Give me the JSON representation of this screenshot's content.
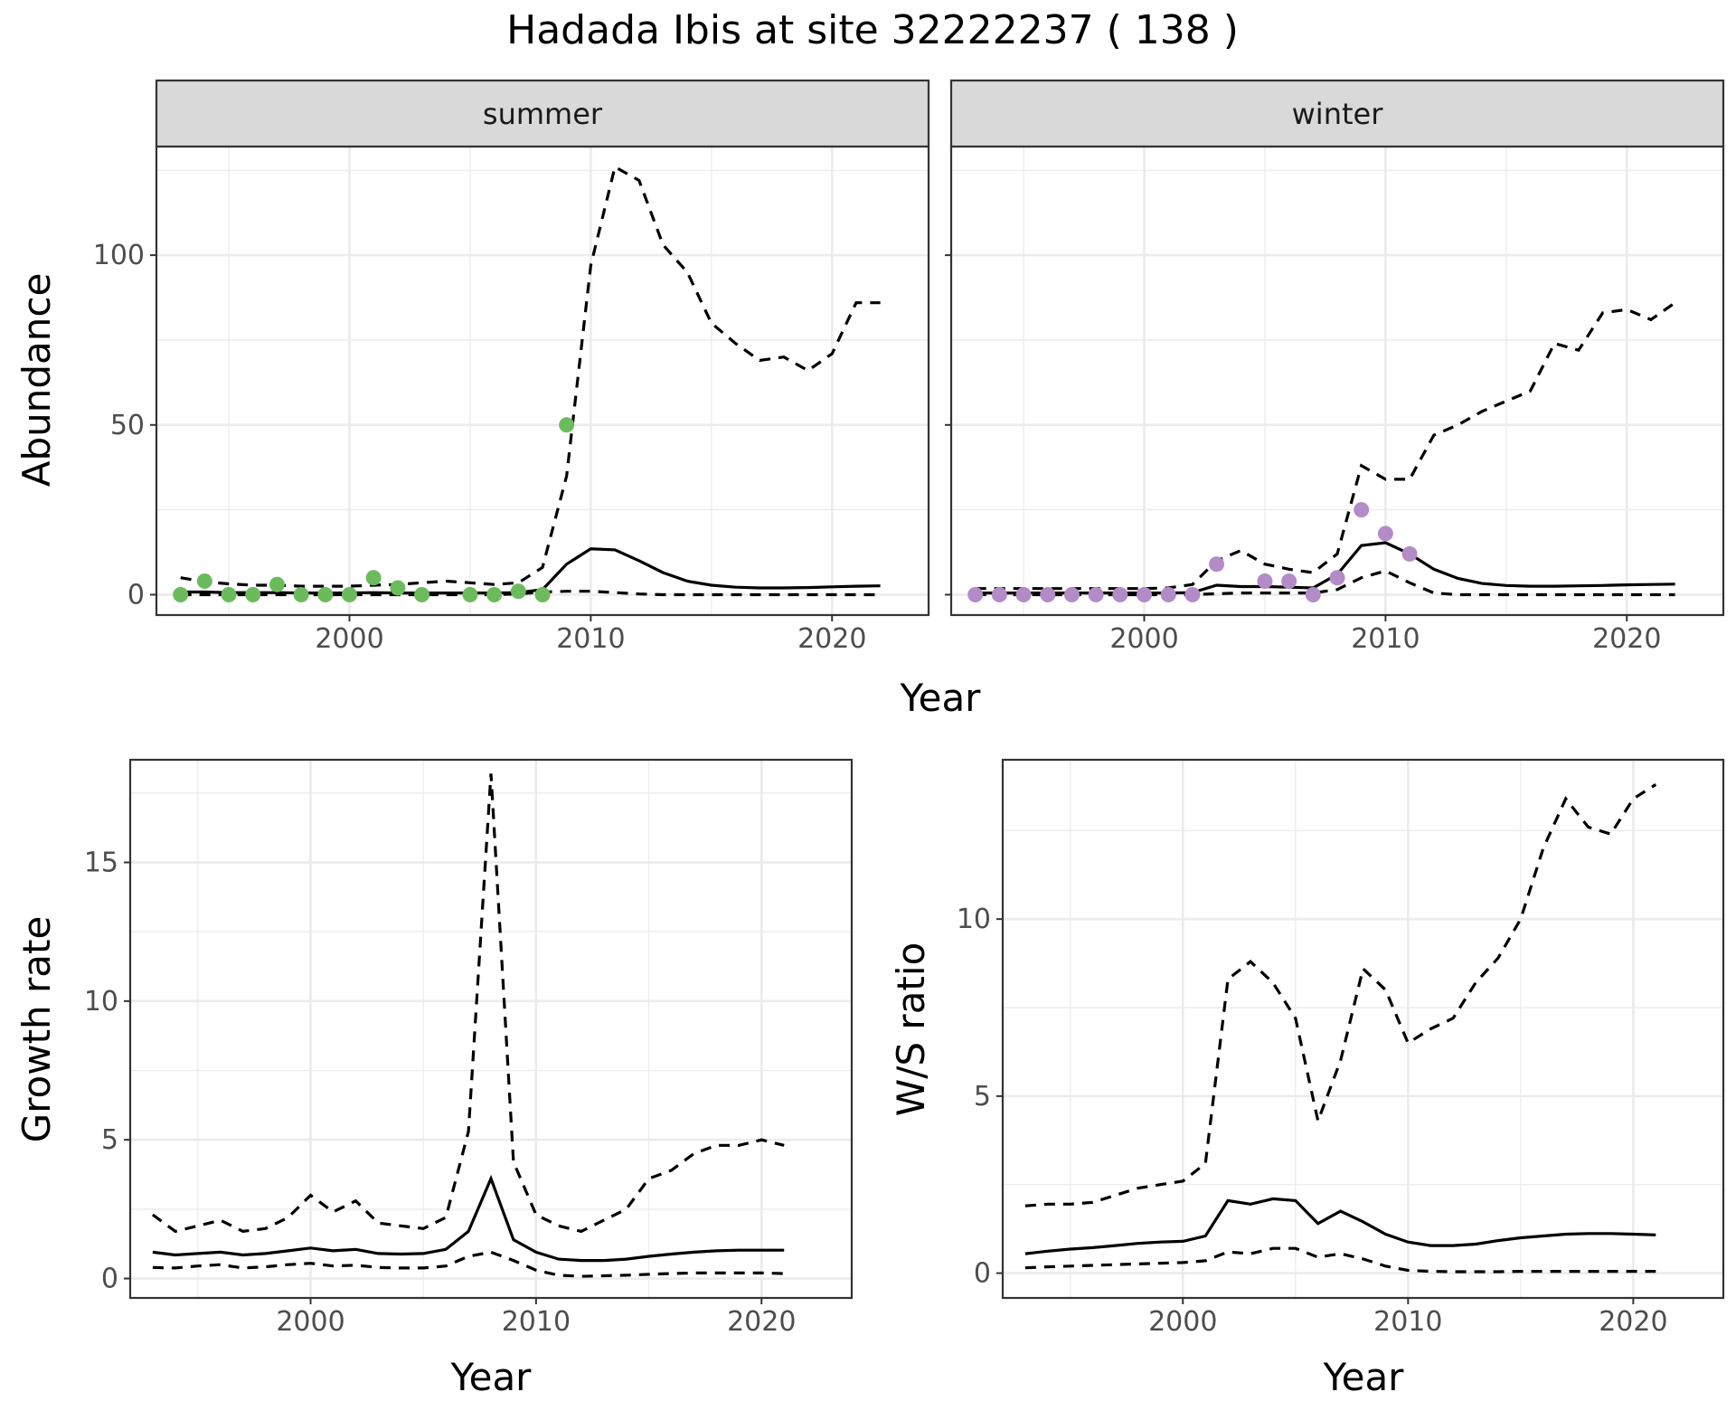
{
  "title": "Hadada Ibis at site 32222237 ( 138 )",
  "colors": {
    "summer_points": "#6bbb5d",
    "winter_points": "#b38bc7",
    "lines": "#000000"
  },
  "chart_data": [
    {
      "type": "line",
      "id": "abundance_summer",
      "strip": "summer",
      "xlabel": "Year",
      "ylabel": "Abundance",
      "xlim": [
        1992,
        2024
      ],
      "ylim": [
        -6,
        132
      ],
      "xticks": [
        2000,
        2010,
        2020
      ],
      "yticks": [
        0,
        50,
        100
      ],
      "series": [
        {
          "role": "mean",
          "style": "solid",
          "x": [
            1993,
            1994,
            1995,
            1996,
            1997,
            1998,
            1999,
            2000,
            2001,
            2002,
            2003,
            2004,
            2005,
            2006,
            2007,
            2008,
            2009,
            2010,
            2011,
            2012,
            2013,
            2014,
            2015,
            2016,
            2017,
            2018,
            2019,
            2020,
            2021,
            2022
          ],
          "y": [
            0.8,
            0.8,
            0.6,
            0.6,
            0.6,
            0.5,
            0.5,
            0.5,
            0.6,
            0.5,
            0.5,
            0.5,
            0.5,
            0.5,
            0.6,
            1.5,
            9,
            13.5,
            13.2,
            10,
            6.5,
            4,
            2.8,
            2.2,
            2,
            2,
            2.1,
            2.3,
            2.5,
            2.6
          ]
        },
        {
          "role": "upper",
          "style": "dashed",
          "x": [
            1993,
            1994,
            1995,
            1996,
            1997,
            1998,
            1999,
            2000,
            2001,
            2002,
            2003,
            2004,
            2005,
            2006,
            2007,
            2008,
            2009,
            2010,
            2011,
            2012,
            2013,
            2014,
            2015,
            2016,
            2017,
            2018,
            2019,
            2020,
            2021,
            2022
          ],
          "y": [
            5,
            3.8,
            3.2,
            2.8,
            2.8,
            2.5,
            2.5,
            2.5,
            2.8,
            3,
            3.5,
            4,
            3.5,
            3,
            3.5,
            8,
            35,
            97,
            126,
            122,
            103,
            95,
            80,
            74,
            69,
            70,
            66,
            71,
            86,
            86
          ]
        },
        {
          "role": "lower",
          "style": "dashed",
          "x": [
            1993,
            1994,
            1995,
            1996,
            1997,
            1998,
            1999,
            2000,
            2001,
            2002,
            2003,
            2004,
            2005,
            2006,
            2007,
            2008,
            2009,
            2010,
            2011,
            2012,
            2013,
            2014,
            2015,
            2016,
            2017,
            2018,
            2019,
            2020,
            2021,
            2022
          ],
          "y": [
            0,
            0,
            0,
            0,
            0,
            0,
            0,
            0,
            0,
            0,
            0,
            0,
            0,
            0,
            0.2,
            0.8,
            1,
            1,
            0.6,
            0.2,
            0,
            0,
            0,
            0,
            0,
            0,
            0,
            0,
            0,
            0
          ]
        }
      ],
      "points": {
        "x": [
          1993,
          1994,
          1995,
          1996,
          1997,
          1998,
          1999,
          2000,
          2001,
          2002,
          2003,
          2005,
          2006,
          2007,
          2008,
          2009
        ],
        "y": [
          0,
          4,
          0,
          0,
          3,
          0,
          0,
          0,
          5,
          2,
          0,
          0,
          0,
          1,
          0,
          50
        ]
      }
    },
    {
      "type": "line",
      "id": "abundance_winter",
      "strip": "winter",
      "xlabel": "Year",
      "ylabel": "Abundance",
      "xlim": [
        1992,
        2024
      ],
      "ylim": [
        -6,
        132
      ],
      "xticks": [
        2000,
        2010,
        2020
      ],
      "yticks": [
        0,
        50,
        100
      ],
      "series": [
        {
          "role": "mean",
          "style": "solid",
          "x": [
            1993,
            1994,
            1995,
            1996,
            1997,
            1998,
            1999,
            2000,
            2001,
            2002,
            2003,
            2004,
            2005,
            2006,
            2007,
            2008,
            2009,
            2010,
            2011,
            2012,
            2013,
            2014,
            2015,
            2016,
            2017,
            2018,
            2019,
            2020,
            2021,
            2022
          ],
          "y": [
            0.5,
            0.5,
            0.5,
            0.5,
            0.5,
            0.5,
            0.5,
            0.5,
            0.5,
            0.6,
            2.8,
            2.4,
            2.4,
            2.2,
            2,
            6,
            14.5,
            15.3,
            12,
            7.5,
            4.8,
            3.3,
            2.7,
            2.5,
            2.5,
            2.6,
            2.7,
            2.9,
            3,
            3.1
          ]
        },
        {
          "role": "upper",
          "style": "dashed",
          "x": [
            1993,
            1994,
            1995,
            1996,
            1997,
            1998,
            1999,
            2000,
            2001,
            2002,
            2003,
            2004,
            2005,
            2006,
            2007,
            2008,
            2009,
            2010,
            2011,
            2012,
            2013,
            2014,
            2015,
            2016,
            2017,
            2018,
            2019,
            2020,
            2021,
            2022
          ],
          "y": [
            1.8,
            1.8,
            1.8,
            1.8,
            1.8,
            1.8,
            1.8,
            1.8,
            2,
            3,
            10,
            13,
            9,
            7.5,
            6.5,
            12,
            38,
            34,
            34,
            47,
            50,
            54,
            57,
            60,
            74,
            72,
            83,
            84,
            81,
            86
          ]
        },
        {
          "role": "lower",
          "style": "dashed",
          "x": [
            1993,
            1994,
            1995,
            1996,
            1997,
            1998,
            1999,
            2000,
            2001,
            2002,
            2003,
            2004,
            2005,
            2006,
            2007,
            2008,
            2009,
            2010,
            2011,
            2012,
            2013,
            2014,
            2015,
            2016,
            2017,
            2018,
            2019,
            2020,
            2021,
            2022
          ],
          "y": [
            0,
            0,
            0,
            0,
            0,
            0,
            0,
            0,
            0,
            0,
            0.3,
            0.5,
            0.5,
            0.5,
            0.5,
            1.5,
            5,
            7,
            3.5,
            0.5,
            0,
            0,
            0,
            0,
            0,
            0,
            0,
            0,
            0,
            0
          ]
        }
      ],
      "points": {
        "x": [
          1993,
          1994,
          1995,
          1996,
          1997,
          1998,
          1999,
          2000,
          2001,
          2002,
          2003,
          2005,
          2006,
          2007,
          2008,
          2009,
          2010,
          2011
        ],
        "y": [
          0,
          0,
          0,
          0,
          0,
          0,
          0,
          0,
          0,
          0,
          9,
          4,
          4,
          0,
          5,
          25,
          18,
          12
        ]
      }
    },
    {
      "type": "line",
      "id": "growth_rate",
      "xlabel": "Year",
      "ylabel": "Growth rate",
      "xlim": [
        1992,
        2024
      ],
      "ylim": [
        -0.7,
        18.7
      ],
      "xticks": [
        2000,
        2010,
        2020
      ],
      "yticks": [
        0,
        5,
        10,
        15
      ],
      "series": [
        {
          "role": "mean",
          "style": "solid",
          "x": [
            1993,
            1994,
            1995,
            1996,
            1997,
            1998,
            1999,
            2000,
            2001,
            2002,
            2003,
            2004,
            2005,
            2006,
            2007,
            2008,
            2009,
            2010,
            2011,
            2012,
            2013,
            2014,
            2015,
            2016,
            2017,
            2018,
            2019,
            2020,
            2021
          ],
          "y": [
            0.95,
            0.85,
            0.9,
            0.95,
            0.85,
            0.9,
            1,
            1.1,
            1,
            1.05,
            0.9,
            0.88,
            0.9,
            1.05,
            1.7,
            3.6,
            1.4,
            0.95,
            0.7,
            0.65,
            0.65,
            0.7,
            0.8,
            0.88,
            0.95,
            1,
            1.02,
            1.02,
            1.02
          ]
        },
        {
          "role": "upper",
          "style": "dashed",
          "x": [
            1993,
            1994,
            1995,
            1996,
            1997,
            1998,
            1999,
            2000,
            2001,
            2002,
            2003,
            2004,
            2005,
            2006,
            2007,
            2008,
            2009,
            2010,
            2011,
            2012,
            2013,
            2014,
            2015,
            2016,
            2017,
            2018,
            2019,
            2020,
            2021
          ],
          "y": [
            2.3,
            1.7,
            1.9,
            2.1,
            1.7,
            1.8,
            2.2,
            3,
            2.4,
            2.8,
            2,
            1.9,
            1.8,
            2.2,
            5.3,
            18.2,
            4.2,
            2.3,
            1.9,
            1.7,
            2.1,
            2.5,
            3.6,
            3.9,
            4.5,
            4.8,
            4.8,
            5,
            4.8
          ]
        },
        {
          "role": "lower",
          "style": "dashed",
          "x": [
            1993,
            1994,
            1995,
            1996,
            1997,
            1998,
            1999,
            2000,
            2001,
            2002,
            2003,
            2004,
            2005,
            2006,
            2007,
            2008,
            2009,
            2010,
            2011,
            2012,
            2013,
            2014,
            2015,
            2016,
            2017,
            2018,
            2019,
            2020,
            2021
          ],
          "y": [
            0.4,
            0.38,
            0.45,
            0.5,
            0.38,
            0.42,
            0.5,
            0.55,
            0.45,
            0.48,
            0.4,
            0.38,
            0.38,
            0.45,
            0.8,
            0.95,
            0.65,
            0.3,
            0.12,
            0.08,
            0.1,
            0.12,
            0.15,
            0.18,
            0.2,
            0.2,
            0.2,
            0.2,
            0.18
          ]
        }
      ]
    },
    {
      "type": "line",
      "id": "ws_ratio",
      "xlabel": "Year",
      "ylabel": "W/S ratio",
      "xlim": [
        1992,
        2024
      ],
      "ylim": [
        -0.7,
        14.5
      ],
      "xticks": [
        2000,
        2010,
        2020
      ],
      "yticks": [
        0,
        5,
        10
      ],
      "series": [
        {
          "role": "mean",
          "style": "solid",
          "x": [
            1993,
            1994,
            1995,
            1996,
            1997,
            1998,
            1999,
            2000,
            2001,
            2002,
            2003,
            2004,
            2005,
            2006,
            2007,
            2008,
            2009,
            2010,
            2011,
            2012,
            2013,
            2014,
            2015,
            2016,
            2017,
            2018,
            2019,
            2020,
            2021
          ],
          "y": [
            0.55,
            0.62,
            0.68,
            0.72,
            0.78,
            0.84,
            0.88,
            0.9,
            1.05,
            2.05,
            1.95,
            2.1,
            2.05,
            1.4,
            1.75,
            1.45,
            1.1,
            0.88,
            0.78,
            0.78,
            0.82,
            0.92,
            1,
            1.05,
            1.1,
            1.12,
            1.12,
            1.1,
            1.08
          ]
        },
        {
          "role": "upper",
          "style": "dashed",
          "x": [
            1993,
            1994,
            1995,
            1996,
            1997,
            1998,
            1999,
            2000,
            2001,
            2002,
            2003,
            2004,
            2005,
            2006,
            2007,
            2008,
            2009,
            2010,
            2011,
            2012,
            2013,
            2014,
            2015,
            2016,
            2017,
            2018,
            2019,
            2020,
            2021
          ],
          "y": [
            1.9,
            1.95,
            1.95,
            2,
            2.2,
            2.4,
            2.5,
            2.6,
            3.1,
            8.3,
            8.8,
            8.2,
            7.2,
            4.3,
            6,
            8.6,
            8,
            6.5,
            6.9,
            7.2,
            8.2,
            8.9,
            10,
            12,
            13.4,
            12.6,
            12.4,
            13.4,
            13.8
          ]
        },
        {
          "role": "lower",
          "style": "dashed",
          "x": [
            1993,
            1994,
            1995,
            1996,
            1997,
            1998,
            1999,
            2000,
            2001,
            2002,
            2003,
            2004,
            2005,
            2006,
            2007,
            2008,
            2009,
            2010,
            2011,
            2012,
            2013,
            2014,
            2015,
            2016,
            2017,
            2018,
            2019,
            2020,
            2021
          ],
          "y": [
            0.15,
            0.18,
            0.2,
            0.22,
            0.24,
            0.26,
            0.28,
            0.3,
            0.35,
            0.6,
            0.55,
            0.7,
            0.7,
            0.45,
            0.55,
            0.4,
            0.2,
            0.08,
            0.05,
            0.04,
            0.04,
            0.04,
            0.05,
            0.05,
            0.05,
            0.05,
            0.05,
            0.05,
            0.05
          ]
        }
      ]
    }
  ]
}
